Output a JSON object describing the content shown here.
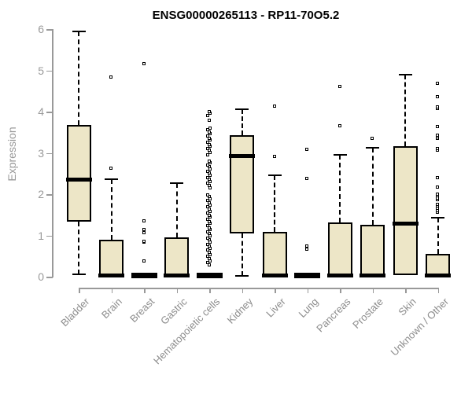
{
  "chart_data": {
    "type": "boxplot",
    "title": "ENSG00000265113 - RP11-70O5.2",
    "ylabel": "Expression",
    "xlabel": "",
    "ylim": [
      0,
      6
    ],
    "yticks": [
      0,
      1,
      2,
      3,
      4,
      5,
      6
    ],
    "grid": false,
    "legend": "none",
    "box_fill": "#ede6c7",
    "box_border": "#000000",
    "median_color": "#000000",
    "whisker_style": "dashed",
    "outlier_marker": "open-square",
    "axis_color": "#999999",
    "tick_label_color": "#999999",
    "categories": [
      "Bladder",
      "Brain",
      "Breast",
      "Gastric",
      "Hematopoietic cells",
      "Kidney",
      "Liver",
      "Lung",
      "Pancreas",
      "Prostate",
      "Skin",
      "Unknown / Other"
    ],
    "series": [
      {
        "name": "Bladder",
        "whisker_low": 0.05,
        "q1": 1.33,
        "median": 2.35,
        "q3": 3.68,
        "whisker_high": 5.95,
        "outliers": []
      },
      {
        "name": "Brain",
        "whisker_low": 0.02,
        "q1": 0.02,
        "median": 0.03,
        "q3": 0.9,
        "whisker_high": 2.36,
        "outliers": [
          2.61,
          4.83
        ]
      },
      {
        "name": "Breast",
        "whisker_low": 0.02,
        "q1": 0.02,
        "median": 0.02,
        "q3": 0.02,
        "whisker_high": 0.02,
        "outliers": [
          0.38,
          0.82,
          0.85,
          1.06,
          1.14,
          1.34,
          5.16
        ]
      },
      {
        "name": "Gastric",
        "whisker_low": 0.02,
        "q1": 0.02,
        "median": 0.03,
        "q3": 0.96,
        "whisker_high": 2.26,
        "outliers": []
      },
      {
        "name": "Hematopoietic cells",
        "whisker_low": 0.02,
        "q1": 0.02,
        "median": 0.02,
        "q3": 0.02,
        "whisker_high": 0.02,
        "outliers": [
          0.28,
          0.33,
          0.38,
          0.43,
          0.48,
          0.53,
          0.58,
          0.63,
          0.68,
          0.73,
          0.78,
          0.83,
          0.88,
          0.93,
          0.98,
          1.03,
          1.08,
          1.13,
          1.18,
          1.23,
          1.28,
          1.33,
          1.38,
          1.43,
          1.48,
          1.53,
          1.58,
          1.63,
          1.68,
          1.73,
          1.78,
          1.83,
          1.88,
          1.93,
          1.98,
          2.15,
          2.2,
          2.25,
          2.3,
          2.35,
          2.4,
          2.45,
          2.5,
          2.55,
          2.6,
          2.65,
          2.7,
          2.75,
          2.8,
          2.95,
          3.0,
          3.05,
          3.1,
          3.15,
          3.2,
          3.25,
          3.3,
          3.35,
          3.4,
          3.45,
          3.5,
          3.55,
          3.6,
          3.78,
          3.9,
          3.95,
          4.0
        ]
      },
      {
        "name": "Kidney",
        "whisker_low": 0.02,
        "q1": 1.05,
        "median": 2.92,
        "q3": 3.43,
        "whisker_high": 4.05,
        "outliers": []
      },
      {
        "name": "Liver",
        "whisker_low": 0.02,
        "q1": 0.02,
        "median": 0.03,
        "q3": 1.08,
        "whisker_high": 2.45,
        "outliers": [
          2.9,
          4.12
        ]
      },
      {
        "name": "Lung",
        "whisker_low": 0.02,
        "q1": 0.02,
        "median": 0.02,
        "q3": 0.02,
        "whisker_high": 0.02,
        "outliers": [
          0.65,
          0.73,
          2.37,
          3.08
        ]
      },
      {
        "name": "Pancreas",
        "whisker_low": 0.02,
        "q1": 0.02,
        "median": 0.03,
        "q3": 1.32,
        "whisker_high": 2.95,
        "outliers": [
          3.65,
          4.6
        ]
      },
      {
        "name": "Prostate",
        "whisker_low": 0.02,
        "q1": 0.02,
        "median": 0.03,
        "q3": 1.26,
        "whisker_high": 3.12,
        "outliers": [
          3.35
        ]
      },
      {
        "name": "Skin",
        "whisker_low": 0.03,
        "q1": 0.03,
        "median": 1.28,
        "q3": 3.17,
        "whisker_high": 4.9,
        "outliers": []
      },
      {
        "name": "Unknown / Other",
        "whisker_low": 0.02,
        "q1": 0.02,
        "median": 0.03,
        "q3": 0.56,
        "whisker_high": 1.43,
        "outliers": [
          1.55,
          1.6,
          1.65,
          1.7,
          1.75,
          1.85,
          1.9,
          1.95,
          2.0,
          2.17,
          2.39,
          3.05,
          3.09,
          3.35,
          3.38,
          3.41,
          3.63,
          4.06,
          4.1,
          4.36,
          4.68
        ]
      }
    ]
  }
}
